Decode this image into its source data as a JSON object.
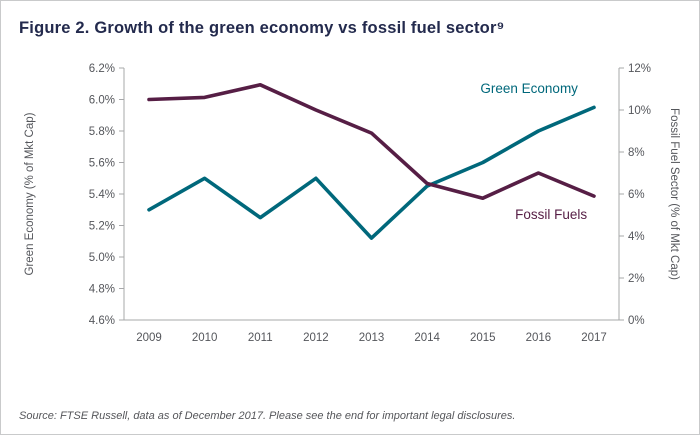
{
  "title": "Figure 2. Growth of the green economy vs fossil fuel sector⁹",
  "source_note": "Source: FTSE Russell, data as of December 2017. Please see the end for important legal disclosures.",
  "colors": {
    "title": "#232a4d",
    "axis_text": "#54565b",
    "axis_line": "#a7a8aa",
    "green_economy": "#00687b",
    "fossil_fuels": "#561e45"
  },
  "chart_data": {
    "type": "line",
    "categories": [
      "2009",
      "2010",
      "2011",
      "2012",
      "2013",
      "2014",
      "2015",
      "2016",
      "2017"
    ],
    "series": [
      {
        "name": "Green Economy",
        "axis": "left",
        "color": "#00687b",
        "values": [
          5.3,
          5.5,
          5.25,
          5.5,
          5.12,
          5.45,
          5.6,
          5.8,
          5.95
        ]
      },
      {
        "name": "Fossil Fuels",
        "axis": "right",
        "color": "#561e45",
        "values": [
          10.5,
          10.6,
          11.2,
          10.0,
          8.9,
          6.5,
          5.8,
          7.0,
          5.9
        ]
      }
    ],
    "left_axis": {
      "label": "Green Economy (% of Mkt Cap)",
      "min": 4.6,
      "max": 6.2,
      "step": 0.2,
      "tick_labels": [
        "4.6%",
        "4.8%",
        "5.0%",
        "5.2%",
        "5.4%",
        "5.6%",
        "5.8%",
        "6.0%",
        "6.2%"
      ]
    },
    "right_axis": {
      "label": "Fossil Fuel Sector (% of Mkt Cap)",
      "min": 0,
      "max": 12,
      "step": 2,
      "tick_labels": [
        "0%",
        "2%",
        "4%",
        "6%",
        "8%",
        "10%",
        "12%"
      ]
    },
    "grid": false,
    "legend": "inline-labels",
    "annotations": [
      {
        "text": "Green Economy",
        "color": "#00687b",
        "fx": 0.72,
        "fy": 0.1
      },
      {
        "text": "Fossil Fuels",
        "color": "#561e45",
        "fx": 0.79,
        "fy": 0.6
      }
    ]
  }
}
